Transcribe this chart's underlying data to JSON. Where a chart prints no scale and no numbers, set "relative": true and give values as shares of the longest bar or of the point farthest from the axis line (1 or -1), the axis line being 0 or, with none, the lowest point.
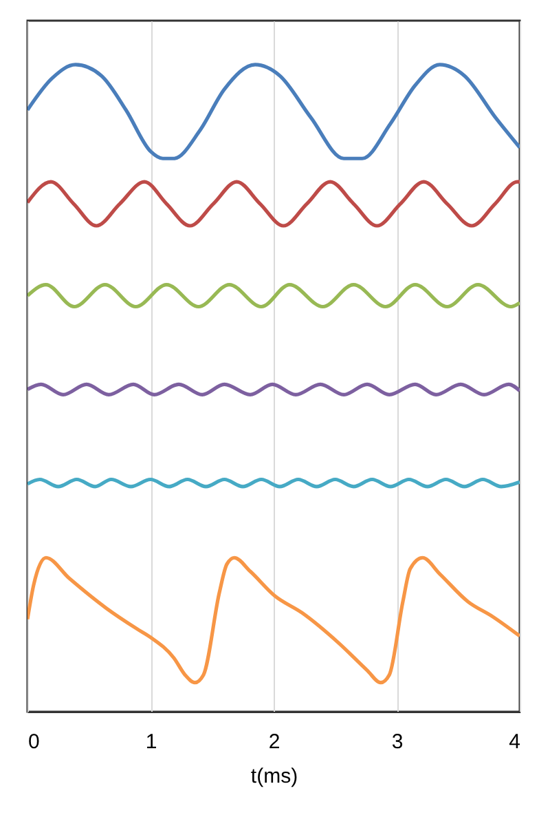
{
  "chart_data": {
    "type": "line",
    "xlabel": "t(ms)",
    "relative": true,
    "xlim": [
      0,
      4
    ],
    "xticks": [
      0,
      1,
      2,
      3,
      4
    ],
    "grid": "x",
    "series": [
      {
        "color": "#4a7ebb",
        "x": [
          0,
          0.2,
          0.39,
          0.6,
          0.8,
          1.0,
          1.1,
          1.19,
          1.4,
          1.6,
          1.85,
          2.05,
          2.3,
          2.57,
          2.72,
          2.95,
          3.15,
          3.35,
          3.55,
          3.8,
          4.0
        ],
        "values": [
          0.93,
          0.979,
          1.0,
          0.983,
          0.93,
          0.866,
          0.855,
          0.855,
          0.898,
          0.962,
          1.0,
          0.983,
          0.919,
          0.855,
          0.855,
          0.909,
          0.968,
          1.0,
          0.983,
          0.919,
          0.872
        ]
      },
      {
        "color": "#be4b48",
        "x": [
          0,
          0.19,
          0.375,
          0.56,
          0.75,
          0.95,
          1.13,
          1.32,
          1.51,
          1.7,
          1.89,
          2.08,
          2.27,
          2.46,
          2.65,
          2.84,
          3.03,
          3.22,
          3.41,
          3.61,
          3.8,
          3.98,
          4.0
        ],
        "values": [
          0.787,
          0.819,
          0.785,
          0.751,
          0.785,
          0.819,
          0.785,
          0.751,
          0.785,
          0.819,
          0.785,
          0.751,
          0.785,
          0.819,
          0.785,
          0.751,
          0.785,
          0.819,
          0.785,
          0.751,
          0.785,
          0.819,
          0.819
        ]
      },
      {
        "color": "#98b954",
        "x": [
          0,
          0.15,
          0.38,
          0.63,
          0.88,
          1.13,
          1.39,
          1.64,
          1.9,
          2.13,
          2.4,
          2.65,
          2.91,
          3.15,
          3.41,
          3.66,
          3.93,
          4.0
        ],
        "values": [
          0.643,
          0.66,
          0.626,
          0.66,
          0.626,
          0.66,
          0.626,
          0.66,
          0.626,
          0.66,
          0.626,
          0.66,
          0.626,
          0.66,
          0.626,
          0.66,
          0.626,
          0.632
        ]
      },
      {
        "color": "#7d60a0",
        "x": [
          0,
          0.11,
          0.29,
          0.48,
          0.66,
          0.86,
          1.03,
          1.23,
          1.42,
          1.6,
          1.81,
          1.99,
          2.18,
          2.38,
          2.57,
          2.76,
          2.94,
          3.15,
          3.32,
          3.52,
          3.71,
          3.91,
          4.0
        ],
        "values": [
          0.498,
          0.506,
          0.49,
          0.506,
          0.49,
          0.506,
          0.49,
          0.506,
          0.49,
          0.506,
          0.49,
          0.506,
          0.49,
          0.506,
          0.49,
          0.506,
          0.49,
          0.506,
          0.49,
          0.506,
          0.49,
          0.506,
          0.496
        ]
      },
      {
        "color": "#46aac5",
        "x": [
          0,
          0.1,
          0.25,
          0.4,
          0.55,
          0.68,
          0.84,
          1.0,
          1.15,
          1.3,
          1.45,
          1.6,
          1.75,
          1.9,
          2.05,
          2.2,
          2.35,
          2.5,
          2.65,
          2.8,
          2.95,
          3.1,
          3.25,
          3.4,
          3.55,
          3.7,
          3.85,
          4.0
        ],
        "values": [
          0.352,
          0.359,
          0.348,
          0.359,
          0.348,
          0.359,
          0.348,
          0.359,
          0.348,
          0.359,
          0.348,
          0.359,
          0.348,
          0.359,
          0.348,
          0.359,
          0.348,
          0.359,
          0.348,
          0.359,
          0.348,
          0.359,
          0.348,
          0.359,
          0.348,
          0.359,
          0.348,
          0.355
        ]
      },
      {
        "color": "#f79646",
        "x": [
          0,
          0.05,
          0.15,
          0.34,
          0.64,
          0.89,
          1.0,
          1.19,
          1.28,
          1.36,
          1.43,
          1.56,
          1.62,
          1.68,
          1.81,
          2.01,
          2.23,
          2.53,
          2.76,
          2.87,
          2.94,
          3.05,
          3.11,
          3.21,
          3.35,
          3.58,
          3.78,
          4.0
        ],
        "values": [
          0.143,
          0.196,
          0.238,
          0.206,
          0.16,
          0.128,
          0.115,
          0.083,
          0.057,
          0.045,
          0.057,
          0.185,
          0.228,
          0.238,
          0.217,
          0.179,
          0.153,
          0.106,
          0.064,
          0.045,
          0.057,
          0.17,
          0.221,
          0.238,
          0.213,
          0.17,
          0.147,
          0.117
        ]
      }
    ]
  }
}
